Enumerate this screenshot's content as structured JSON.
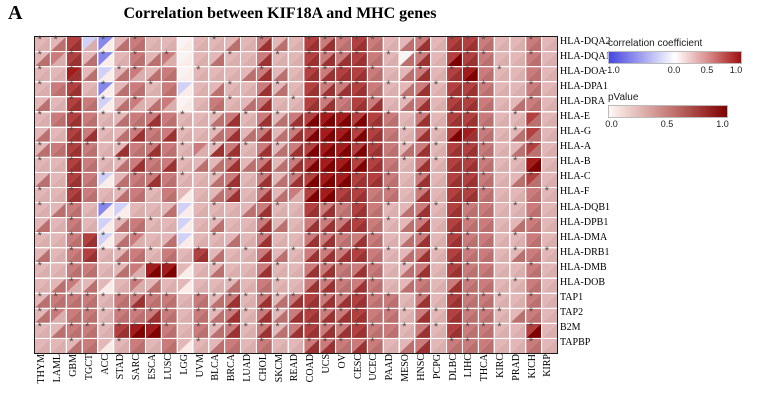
{
  "panel_label": "A",
  "title": "Correlation between KIF18A and MHC genes",
  "legend": {
    "correlation": {
      "label": "correlation coefficient",
      "ticks": [
        {
          "label": "-1.0",
          "pos": 3
        },
        {
          "label": "0.0",
          "pos": 50
        },
        {
          "label": "0.5",
          "pos": 75
        },
        {
          "label": "1.0",
          "pos": 97
        }
      ],
      "gradient": [
        "#4646e1 0%",
        "#ffffff 50%",
        "#d98c8c 75%",
        "#a00f0f 100%"
      ]
    },
    "pvalue": {
      "label": "pValue",
      "ticks": [
        {
          "label": "0.0",
          "pos": 3
        },
        {
          "label": "0.5",
          "pos": 50
        },
        {
          "label": "1.0",
          "pos": 97
        }
      ],
      "gradient": [
        "#fff8f5 0%",
        "#c0716d 55%",
        "#7f0000 100%"
      ]
    }
  },
  "chart_data": {
    "type": "heatmap",
    "title": "Correlation between KIF18A and MHC genes",
    "description": "Each cell split by anti-diagonal: upper-left triangle = correlation coefficient (blue negative to red positive), lower-right triangle = pValue shading (white to dark red). '*' marks significance in the upper triangle. Values are visual estimates binned from the figure.",
    "columns": [
      "THYM",
      "LAML",
      "GBM",
      "TGCT",
      "ACC",
      "STAD",
      "SARC",
      "ESCA",
      "LUSC",
      "LGG",
      "UVM",
      "BLCA",
      "BRCA",
      "LUAD",
      "CHOL",
      "SKCM",
      "READ",
      "COAD",
      "UCS",
      "OV",
      "CESC",
      "UCEC",
      "PAAD",
      "MESO",
      "HNSC",
      "PCPG",
      "DLBC",
      "LIHC",
      "THCA",
      "KIRC",
      "PRAD",
      "KICH",
      "KIRP"
    ],
    "encoding": {
      "corr_bins": {
        "N": -0.65,
        "n": -0.25,
        "w": 0.05,
        "p": 0.3,
        "P": 0.55,
        "R": 0.8,
        "D": 0.95
      },
      "pval_bins": {
        "w": 0.05,
        "l": 0.3,
        "m": 0.55,
        "h": 0.8,
        "H": 1.0
      },
      "sig": {
        "*": "significant",
        ".": "not significant"
      }
    },
    "rows": [
      {
        "gene": "HLA-DQA2",
        "corr": "ppRnNpPppwppppPppRPPRPppPpRRPppPp",
        "pval": "lmhlwmmllwllmlhmlhhmhmlmhlhhmllml",
        "sig": "**..*.*....*..*..*****..*.***..*."
      },
      {
        "gene": "HLA-DQA1",
        "corr": "pPRpNpPpPwppppPppRPPRPpwPpRRPppPp",
        "pval": "mlhmwlmmlwlmllhllhhhhmlmhlHhmllml",
        "sig": "*.*.*.*.*...*..*.****.*.*..**..*."
      },
      {
        "gene": "HLA-DOA",
        "corr": "ppDpnpPpPwppppPppRPRRPppPpRDPppPp",
        "pval": "llhmwmlmmwlllmhmlhhhhmlmhlhHmllml",
        "sig": "*.*..**...*...*..***.*..*.**.*..."
      },
      {
        "gene": "HLA-DPA1",
        "corr": "pPRpNpPpPnppppPppRPPRPppPpRRPppPp",
        "pval": "lmhlwmmlmwlmllhmlhhhhmlmhlhhmllml",
        "sig": "*.*.*..*....*..*..***.*..*.**..*."
      },
      {
        "gene": "HLA-DRA",
        "corr": "ppRPnpPpPwpPppPppRPPRPppPpRRPppPp",
        "pval": "mlhmwmlmlwlmlmhllhhmhhlmhlhhmlmml",
        "sig": "..*.*.*.....*...*.**.*.*..**...*."
      },
      {
        "gene": "HLA-E",
        "corr": "pPRPppPPPpppPpPpPRDDRRPpPpRRPppRp",
        "pval": "lmhmlmmhmllmhlhmhHHHHhmlhlhhmllml",
        "sig": "*.*.**.*.*.*.*.*.****.*.*.**..*.."
      },
      {
        "gene": "HLA-G",
        "corr": "ppRPppPPPpppPpPpPRDDRRPpPpRDPppRp",
        "pval": "mlhhlmhmhllmhmhmhHHHHhmlhlHhmlmml",
        "sig": "..*.*.**.*.*..*.******.*.*.**.*.."
      },
      {
        "gene": "HLA-A",
        "corr": "pPRPppPPPpPpPpPpPRDDRRPpPpRRPppRp",
        "pval": "mmhmlhmhmllhhlhmhHHHHhmmhlhhmlmml",
        "sig": "*.**.*.*.*.*.*.*.*****.*.*.**..*."
      },
      {
        "gene": "HLA-B",
        "corr": "ppRPppPPPpppPpPpPRDDRRPpPpRRPppDp",
        "pval": "llhmlmhmhlmmhmhmhHHHHhmlhlhhmllHl",
        "sig": "*.*.**.*.*..*.*.******.*.*.**.*.."
      },
      {
        "gene": "HLA-C",
        "corr": "ppRPnpPPPpppPpPpPRDDRRPpPpRRPppRp",
        "pval": "mlhmwmmhmllmhlhmhHHHhhmlhlhhmlmml",
        "sig": "..*.*.**.*.*..*.*****.*.*..**..*."
      },
      {
        "gene": "HLA-F",
        "corr": "ppRPppPpPpppPpPpPRDRRPPpPpRRPppPp",
        "pval": "llhmlmmlmwlmhlhmlHHhhmmlhlhhmllml",
        "sig": "*.*..*.*....*.*..****.*.*..**...*"
      },
      {
        "gene": "HLA-DQB1",
        "corr": "ppPpNnpppnppppPppRPPRPppPpRPPppPp",
        "pval": "lmmlwwllmwlllmhllhhmhmlmhlhmmllml",
        "sig": "*.*.*......*...*..***.*..*.*..*.."
      },
      {
        "gene": "HLA-DPB1",
        "corr": "ppPpnpPppnppppPppPPPRPppPpRPPppPp",
        "pval": "mlmlwmmllwlmllhmlhhhhmlmhlhmmlmml",
        "sig": "..*..*.*...*..*...***.*.*..*...*."
      },
      {
        "gene": "HLA-DMA",
        "corr": "ppPRnpPppnppppPppPPPPPppPpRPPppPp",
        "pval": "llmhwmllmwllmlhllhhmhmlmhlhmmllml",
        "sig": "*.*.*.*....*..*..***.*..*.**..*.."
      },
      {
        "gene": "HLA-DRB1",
        "corr": "ppPRppPpPpRpppPppPPPRPppPpRPPppPp",
        "pval": "mlmhlmmlmlhmllhmlhhhhmlmhlhmmlmml",
        "sig": "..*.**.*..*..*..*.***.*..*.*..*.*"
      },
      {
        "gene": "HLA-DMB",
        "corr": "ppPPppPDDpppppPppPPPPPppPpRPPppPp",
        "pval": "llmmlmlHHwlmllhllhhmhmlmhlhmmllml",
        "sig": "*.*..*.**..*...*..**.*.*..**...*."
      },
      {
        "gene": "HLA-DOB",
        "corr": "ppPpppPpppppppPppPPPPPppPpPPPppPp",
        "pval": "lmlmwllmlwllmlmllhhmhmlmmlhmmllml",
        "sig": "..*...*.....*..*..**.*..*..*..*.."
      },
      {
        "gene": "TAP1",
        "corr": "pPPPpPPPPpPpPpPpPRPPRPPpPpRPPppPp",
        "pval": "mmmmlmhmmlmmhlhmhhhhhmmlhlhmmllml",
        "sig": "*********.*******.*****.*.****.*."
      },
      {
        "gene": "TAP2",
        "corr": "pPPPpPPPPpPpPpPpPRPPRPPpPpRPPppPp",
        "pval": "mlmmlmmhmlmmhlhmhhhhhmmlhlhmmlmml",
        "sig": "**.******.******.****.**.*.***.*."
      },
      {
        "gene": "B2M",
        "corr": "ppPPpRDDPpPpPpPpPRPPRPPpPpRPPppRp",
        "pval": "lmmmlhHHmlmmhlhmhhhhhmmlhlhmmllHl",
        "sig": "*.*******.******.*****.*.*.***.*."
      },
      {
        "gene": "TAPBP",
        "corr": "pppPppPpPpppPpPppPPPPPppPpPPPppPp",
        "pval": "llmmwlmlmwlmmlmllhhmhmlmhlmmmllml",
        "sig": "..*..*....*...*..***.*....**...*."
      }
    ]
  }
}
